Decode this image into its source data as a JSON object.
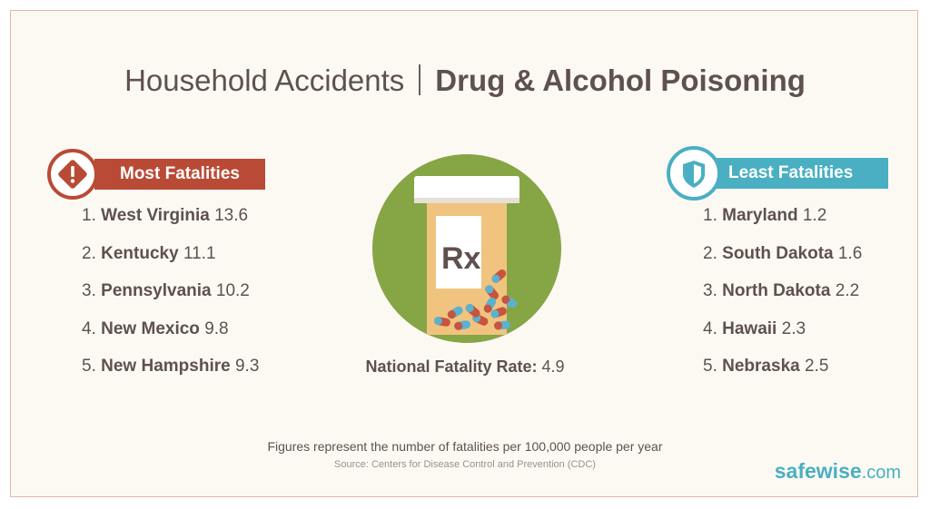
{
  "title": {
    "light": "Household Accidents",
    "bold": "Drug & Alcohol Poisoning"
  },
  "most": {
    "label": "Most Fatalities",
    "icon": "warning-icon",
    "color": "#b94a36",
    "items": [
      {
        "num": "1.",
        "state": "West Virginia",
        "value": "13.6"
      },
      {
        "num": "2.",
        "state": "Kentucky",
        "value": "11.1"
      },
      {
        "num": "3.",
        "state": "Pennsylvania",
        "value": "10.2"
      },
      {
        "num": "4.",
        "state": "New Mexico",
        "value": "9.8"
      },
      {
        "num": "5.",
        "state": "New Hampshire",
        "value": "9.3"
      }
    ]
  },
  "least": {
    "label": "Least Fatalities",
    "icon": "shield-icon",
    "color": "#4aafc2",
    "items": [
      {
        "num": "1.",
        "state": "Maryland",
        "value": "1.2"
      },
      {
        "num": "2.",
        "state": "South Dakota",
        "value": "1.6"
      },
      {
        "num": "3.",
        "state": "North Dakota",
        "value": "2.2"
      },
      {
        "num": "4.",
        "state": "Hawaii",
        "value": "2.3"
      },
      {
        "num": "5.",
        "state": "Nebraska",
        "value": "2.5"
      }
    ]
  },
  "center": {
    "bottle_label": "Rx",
    "national_label": "National Fatality Rate:",
    "national_value": "4.9"
  },
  "footer": {
    "note": "Figures represent the number of fatalities per 100,000 people per year",
    "source": "Source: Centers for Disease Control and Prevention (CDC)"
  },
  "logo": {
    "brand": "safewise",
    "tld": ".com"
  }
}
